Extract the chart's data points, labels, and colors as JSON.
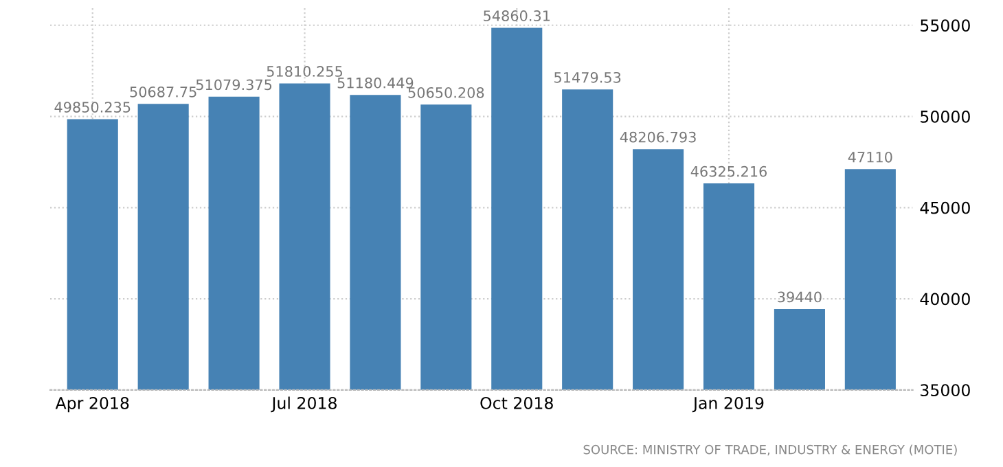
{
  "chart_data": {
    "type": "bar",
    "categories": [
      "Apr 2018",
      null,
      null,
      "Jul 2018",
      null,
      null,
      "Oct 2018",
      null,
      null,
      "Jan 2019",
      null,
      null
    ],
    "values": [
      49850.235,
      50687.75,
      51079.375,
      51810.255,
      51180.449,
      50650.208,
      54860.31,
      51479.53,
      48206.793,
      46325.216,
      39440,
      47110
    ],
    "color": "#4682b4",
    "ylim": [
      35000,
      56000
    ],
    "yticks": [
      35000,
      40000,
      45000,
      50000,
      55000
    ],
    "grid": true,
    "data_labels": true,
    "annotations": [
      "SOURCE: MINISTRY OF TRADE, INDUSTRY & ENERGY (MOTIE)"
    ]
  }
}
